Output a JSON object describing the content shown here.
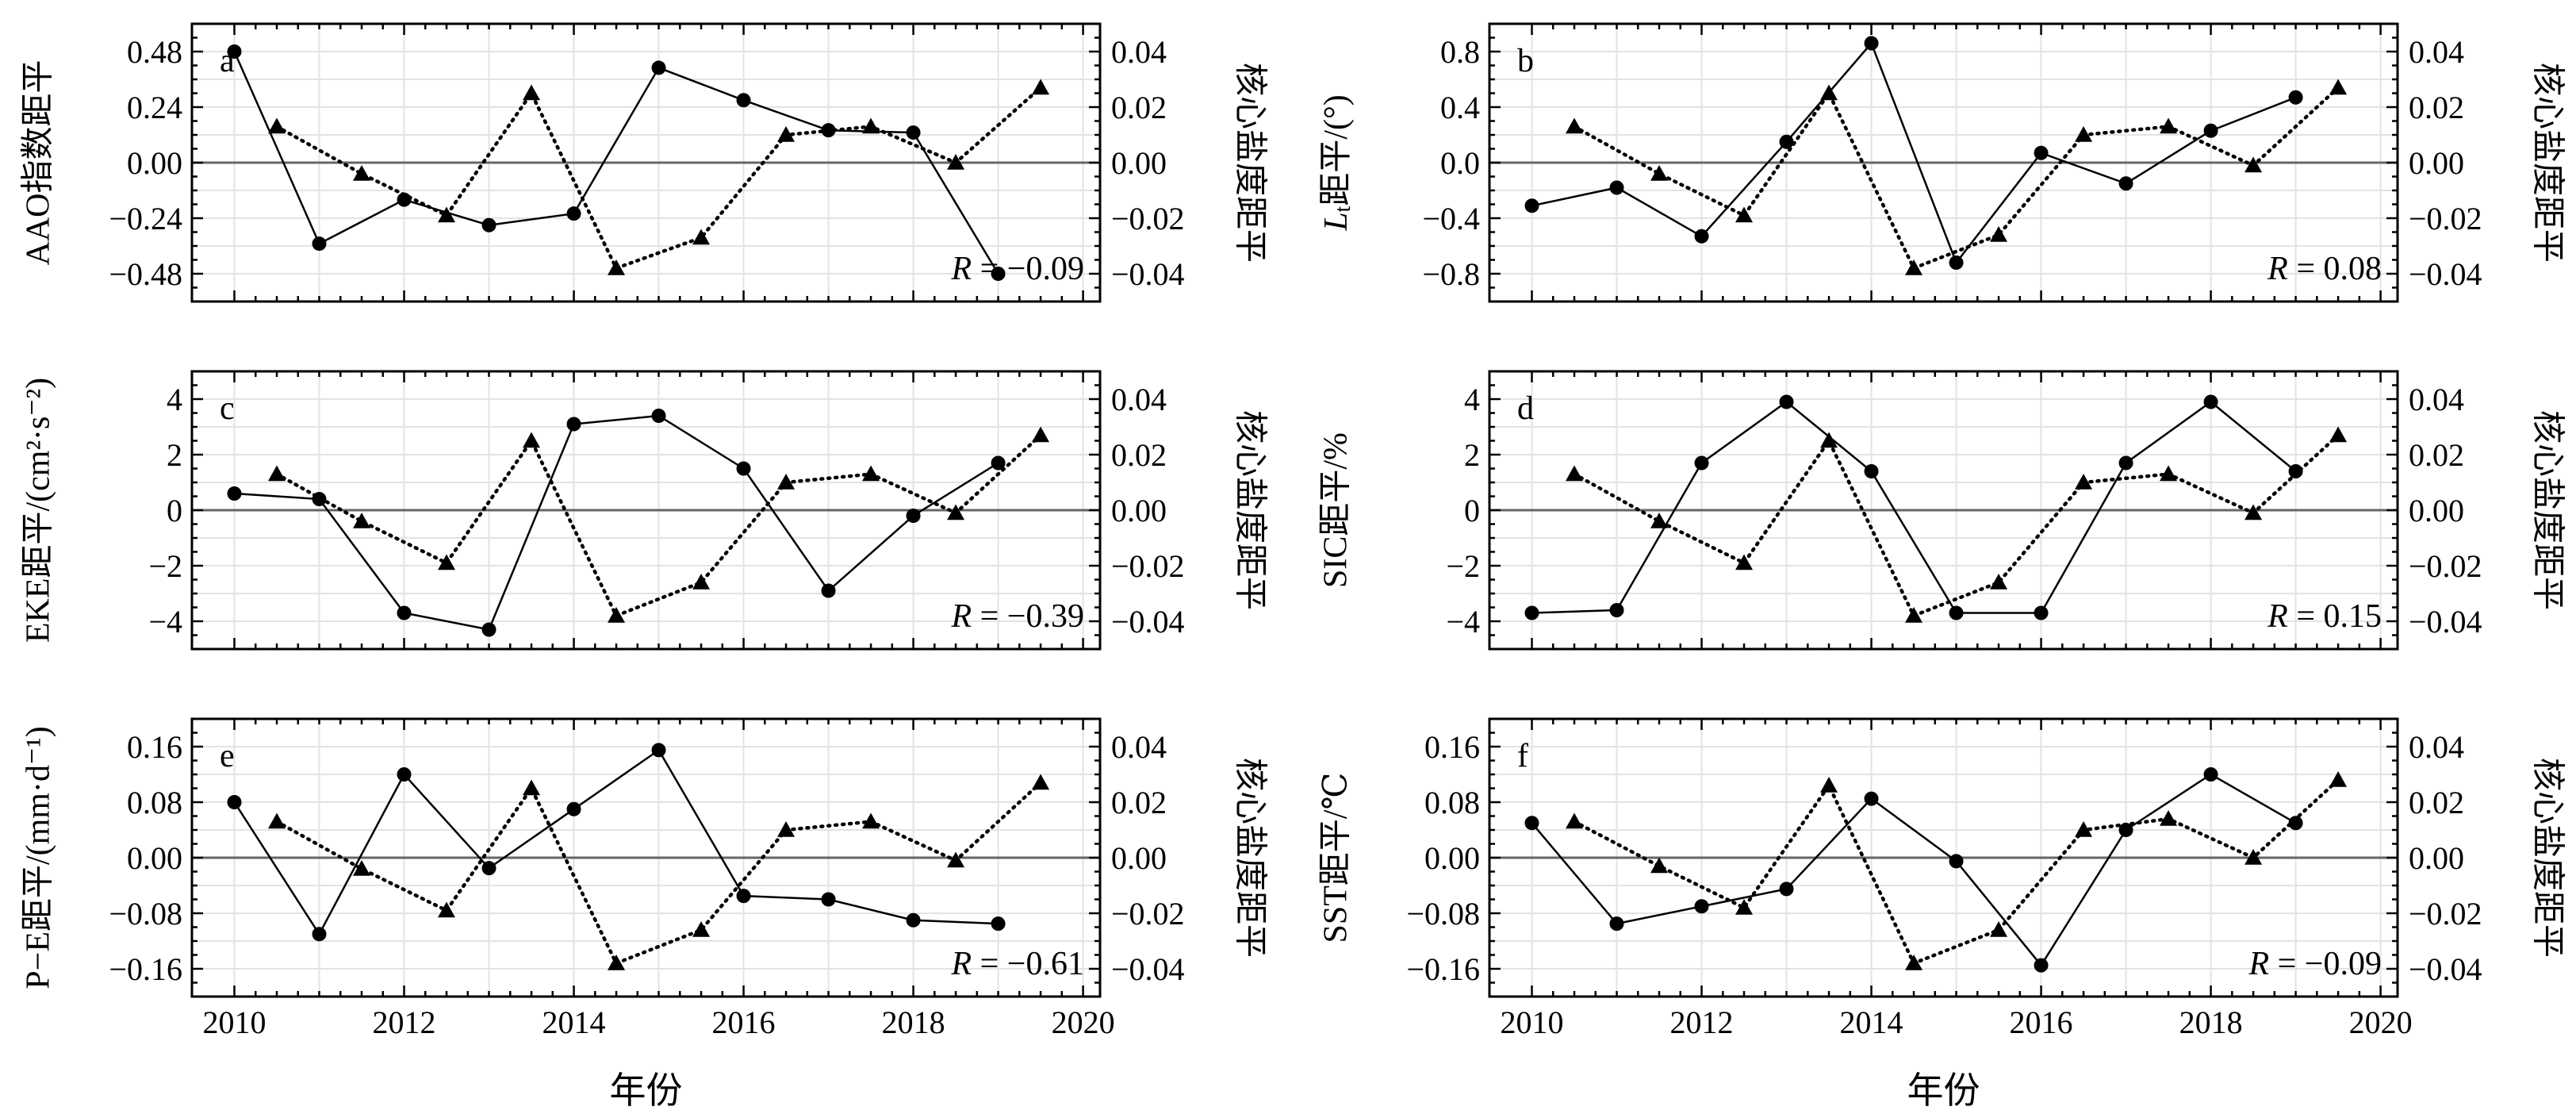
{
  "x_axis_label": "年份",
  "chart_data": [
    {
      "type": "line",
      "panel": "a",
      "ylabel": "AAO指数距平",
      "y2label": "核心盐度距平",
      "ylim": [
        -0.6,
        0.6
      ],
      "yticks": [
        -0.48,
        -0.24,
        0.0,
        0.24,
        0.48
      ],
      "y2lim": [
        -0.05,
        0.05
      ],
      "y2ticks": [
        -0.04,
        -0.02,
        0.0,
        0.02,
        0.04
      ],
      "xlim": [
        2009.5,
        2020.2
      ],
      "xticks": [
        2010,
        2012,
        2014,
        2016,
        2018,
        2020
      ],
      "correlation": {
        "label": "R",
        "text": " = −0.09"
      },
      "series": [
        {
          "axis": "left",
          "style": "solid",
          "marker": "circle",
          "x": [
            2010.0,
            2011.0,
            2012.0,
            2013.0,
            2014.0,
            2015.0,
            2016.0,
            2017.0,
            2018.0,
            2019.0
          ],
          "y": [
            0.48,
            -0.35,
            -0.16,
            -0.27,
            -0.22,
            0.41,
            0.27,
            0.14,
            0.13,
            -0.48
          ]
        },
        {
          "axis": "right",
          "style": "dotted",
          "marker": "triangle",
          "x": [
            2010.5,
            2011.5,
            2012.5,
            2013.5,
            2014.5,
            2015.5,
            2016.5,
            2017.5,
            2018.5,
            2019.5
          ],
          "y": [
            0.013,
            -0.004,
            -0.019,
            0.025,
            -0.038,
            -0.027,
            0.01,
            0.013,
            0.0,
            0.027
          ]
        }
      ]
    },
    {
      "type": "line",
      "panel": "b",
      "ylabel": "距平/(°)",
      "ylabel_prefix": "L",
      "ylabel_sub": "t",
      "y2label": "核心盐度距平",
      "ylim": [
        -1.0,
        1.0
      ],
      "yticks": [
        -0.8,
        -0.4,
        0.0,
        0.4,
        0.8
      ],
      "y2lim": [
        -0.05,
        0.05
      ],
      "y2ticks": [
        -0.04,
        -0.02,
        0.0,
        0.02,
        0.04
      ],
      "xlim": [
        2009.5,
        2020.2
      ],
      "xticks": [
        2010,
        2012,
        2014,
        2016,
        2018,
        2020
      ],
      "correlation": {
        "label": "R",
        "text": " = 0.08"
      },
      "series": [
        {
          "axis": "left",
          "style": "solid",
          "marker": "circle",
          "x": [
            2010.0,
            2011.0,
            2012.0,
            2013.0,
            2014.0,
            2015.0,
            2016.0,
            2017.0,
            2018.0,
            2019.0
          ],
          "y": [
            -0.31,
            -0.18,
            -0.53,
            0.15,
            0.86,
            -0.72,
            0.07,
            -0.15,
            0.23,
            0.47
          ]
        },
        {
          "axis": "right",
          "style": "dotted",
          "marker": "triangle",
          "x": [
            2010.5,
            2011.5,
            2012.5,
            2013.5,
            2014.5,
            2015.5,
            2016.5,
            2017.5,
            2018.5,
            2019.5
          ],
          "y": [
            0.013,
            -0.004,
            -0.019,
            0.025,
            -0.038,
            -0.026,
            0.01,
            0.013,
            -0.001,
            0.027
          ]
        }
      ]
    },
    {
      "type": "line",
      "panel": "c",
      "ylabel": "EKE距平/(cm²·s⁻²)",
      "y2label": "核心盐度距平",
      "ylim": [
        -5.0,
        5.0
      ],
      "yticks": [
        -4,
        -2,
        0,
        2,
        4
      ],
      "y2lim": [
        -0.05,
        0.05
      ],
      "y2ticks": [
        -0.04,
        -0.02,
        0.0,
        0.02,
        0.04
      ],
      "xlim": [
        2009.5,
        2020.2
      ],
      "xticks": [
        2010,
        2012,
        2014,
        2016,
        2018,
        2020
      ],
      "correlation": {
        "label": "R",
        "text": " = −0.39"
      },
      "series": [
        {
          "axis": "left",
          "style": "solid",
          "marker": "circle",
          "x": [
            2010.0,
            2011.0,
            2012.0,
            2013.0,
            2014.0,
            2015.0,
            2016.0,
            2017.0,
            2018.0,
            2019.0
          ],
          "y": [
            0.6,
            0.4,
            -3.7,
            -4.3,
            3.1,
            3.4,
            1.5,
            -2.9,
            -0.2,
            1.7
          ]
        },
        {
          "axis": "right",
          "style": "dotted",
          "marker": "triangle",
          "x": [
            2010.5,
            2011.5,
            2012.5,
            2013.5,
            2014.5,
            2015.5,
            2016.5,
            2017.5,
            2018.5,
            2019.5
          ],
          "y": [
            0.013,
            -0.004,
            -0.019,
            0.025,
            -0.038,
            -0.026,
            0.01,
            0.013,
            -0.001,
            0.027
          ]
        }
      ]
    },
    {
      "type": "line",
      "panel": "d",
      "ylabel": "SIC距平/%",
      "y2label": "核心盐度距平",
      "ylim": [
        -5.0,
        5.0
      ],
      "yticks": [
        -4,
        -2,
        0,
        2,
        4
      ],
      "y2lim": [
        -0.05,
        0.05
      ],
      "y2ticks": [
        -0.04,
        -0.02,
        0.0,
        0.02,
        0.04
      ],
      "xlim": [
        2009.5,
        2020.2
      ],
      "xticks": [
        2010,
        2012,
        2014,
        2016,
        2018,
        2020
      ],
      "correlation": {
        "label": "R",
        "text": " = 0.15"
      },
      "series": [
        {
          "axis": "left",
          "style": "solid",
          "marker": "circle",
          "x": [
            2010.0,
            2011.0,
            2012.0,
            2013.0,
            2014.0,
            2015.0,
            2016.0,
            2017.0,
            2018.0,
            2019.0
          ],
          "y": [
            -3.7,
            -3.6,
            1.7,
            3.9,
            1.4,
            -3.7,
            -3.7,
            1.7,
            3.9,
            1.4
          ]
        },
        {
          "axis": "right",
          "style": "dotted",
          "marker": "triangle",
          "x": [
            2010.5,
            2011.5,
            2012.5,
            2013.5,
            2014.5,
            2015.5,
            2016.5,
            2017.5,
            2018.5,
            2019.5
          ],
          "y": [
            0.013,
            -0.004,
            -0.019,
            0.025,
            -0.038,
            -0.026,
            0.01,
            0.013,
            -0.001,
            0.027
          ]
        }
      ]
    },
    {
      "type": "line",
      "panel": "e",
      "ylabel": "P−E距平/(mm·d⁻¹)",
      "y2label": "核心盐度距平",
      "ylim": [
        -0.2,
        0.2
      ],
      "yticks": [
        -0.16,
        -0.08,
        0.0,
        0.08,
        0.16
      ],
      "y2lim": [
        -0.05,
        0.05
      ],
      "y2ticks": [
        -0.04,
        -0.02,
        0.0,
        0.02,
        0.04
      ],
      "xlim": [
        2009.5,
        2020.2
      ],
      "xticks": [
        2010,
        2012,
        2014,
        2016,
        2018,
        2020
      ],
      "correlation": {
        "label": "R",
        "text": " = −0.61"
      },
      "series": [
        {
          "axis": "left",
          "style": "solid",
          "marker": "circle",
          "x": [
            2010.0,
            2011.0,
            2012.0,
            2013.0,
            2014.0,
            2015.0,
            2016.0,
            2017.0,
            2018.0,
            2019.0
          ],
          "y": [
            0.08,
            -0.11,
            0.12,
            -0.015,
            0.07,
            0.155,
            -0.055,
            -0.06,
            -0.09,
            -0.095
          ]
        },
        {
          "axis": "right",
          "style": "dotted",
          "marker": "triangle",
          "x": [
            2010.5,
            2011.5,
            2012.5,
            2013.5,
            2014.5,
            2015.5,
            2016.5,
            2017.5,
            2018.5,
            2019.5
          ],
          "y": [
            0.013,
            -0.004,
            -0.019,
            0.025,
            -0.038,
            -0.026,
            0.01,
            0.013,
            -0.001,
            0.027
          ]
        }
      ]
    },
    {
      "type": "line",
      "panel": "f",
      "ylabel": "SST距平/℃",
      "y2label": "核心盐度距平",
      "ylim": [
        -0.2,
        0.2
      ],
      "yticks": [
        -0.16,
        -0.08,
        0.0,
        0.08,
        0.16
      ],
      "y2lim": [
        -0.05,
        0.05
      ],
      "y2ticks": [
        -0.04,
        -0.02,
        0.0,
        0.02,
        0.04
      ],
      "xlim": [
        2009.5,
        2020.2
      ],
      "xticks": [
        2010,
        2012,
        2014,
        2016,
        2018,
        2020
      ],
      "correlation": {
        "label": "R",
        "text": " = −0.09"
      },
      "series": [
        {
          "axis": "left",
          "style": "solid",
          "marker": "circle",
          "x": [
            2010.0,
            2011.0,
            2012.0,
            2013.0,
            2014.0,
            2015.0,
            2016.0,
            2017.0,
            2018.0,
            2019.0
          ],
          "y": [
            0.05,
            -0.095,
            -0.07,
            -0.045,
            0.085,
            -0.005,
            -0.155,
            0.04,
            0.12,
            0.05
          ]
        },
        {
          "axis": "right",
          "style": "dotted",
          "marker": "triangle",
          "x": [
            2010.5,
            2011.5,
            2012.5,
            2013.5,
            2014.5,
            2015.5,
            2016.5,
            2017.5,
            2018.5,
            2019.5
          ],
          "y": [
            0.013,
            -0.003,
            -0.018,
            0.026,
            -0.038,
            -0.026,
            0.01,
            0.014,
            0.0,
            0.028
          ]
        }
      ]
    }
  ]
}
